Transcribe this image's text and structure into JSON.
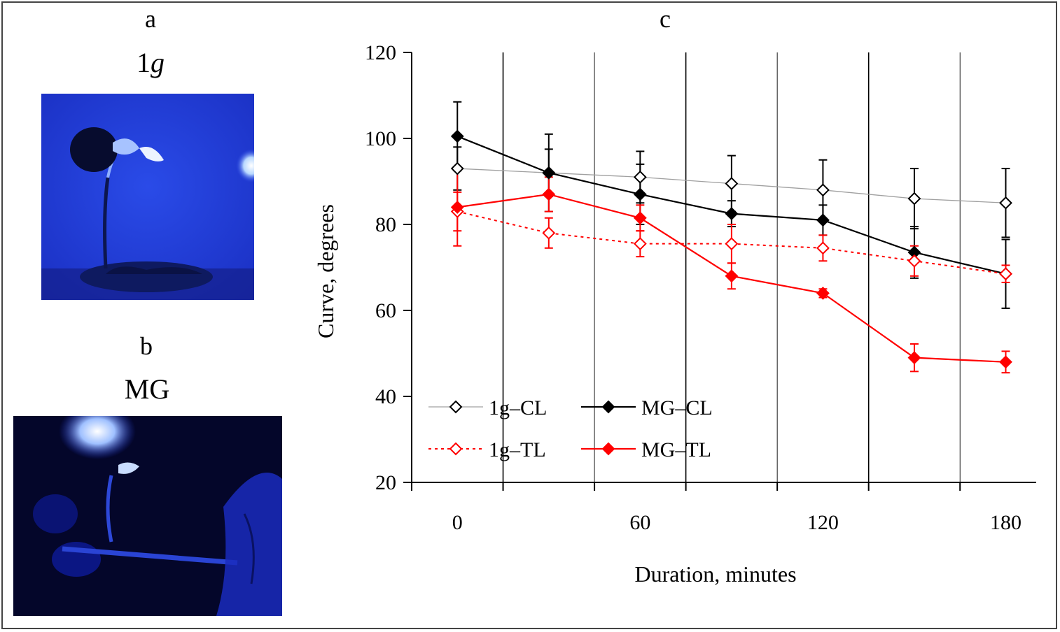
{
  "panel_a": {
    "letter": "a",
    "label_main": "1",
    "label_italic": "g"
  },
  "panel_b": {
    "letter": "b",
    "label": "MG"
  },
  "panel_c": {
    "letter": "c"
  },
  "chart_data": {
    "type": "line",
    "title": "",
    "xlabel": "Duration, minutes",
    "ylabel": "Curve, degrees",
    "xlim": [
      -15,
      190
    ],
    "ylim": [
      20,
      120
    ],
    "x_ticks": [
      0,
      60,
      120,
      180
    ],
    "y_ticks": [
      20,
      40,
      60,
      80,
      100,
      120
    ],
    "grid": "vertical lines",
    "legend_position": "bottom-left",
    "x": [
      0,
      30,
      60,
      90,
      120,
      150,
      180
    ],
    "series": [
      {
        "name": "1g–CL",
        "color": "#000000",
        "marker": "open-diamond",
        "line": "solid-thin-gray",
        "values": [
          93,
          92,
          91,
          89.5,
          88,
          86,
          85
        ],
        "errors": [
          5,
          9,
          6,
          6.5,
          7,
          7,
          8
        ]
      },
      {
        "name": "MG–CL",
        "color": "#000000",
        "marker": "filled-diamond",
        "line": "solid",
        "values": [
          100.5,
          92,
          87,
          82.5,
          81,
          73.5,
          68.5
        ],
        "errors": [
          8,
          5.5,
          7,
          3,
          3.5,
          6,
          8
        ]
      },
      {
        "name": "1g–TL",
        "color": "#ff0000",
        "marker": "open-diamond",
        "line": "dotted",
        "values": [
          83,
          78,
          75.5,
          75.5,
          74.5,
          71.5,
          68.5
        ],
        "errors": [
          4.5,
          3.5,
          3,
          4.5,
          3,
          3.5,
          2
        ]
      },
      {
        "name": "MG–TL",
        "color": "#ff0000",
        "marker": "filled-diamond",
        "line": "solid",
        "values": [
          84,
          87,
          81.5,
          68,
          64,
          49,
          48
        ],
        "errors": [
          9,
          4,
          3,
          3,
          1,
          3.2,
          2.5
        ]
      }
    ]
  }
}
